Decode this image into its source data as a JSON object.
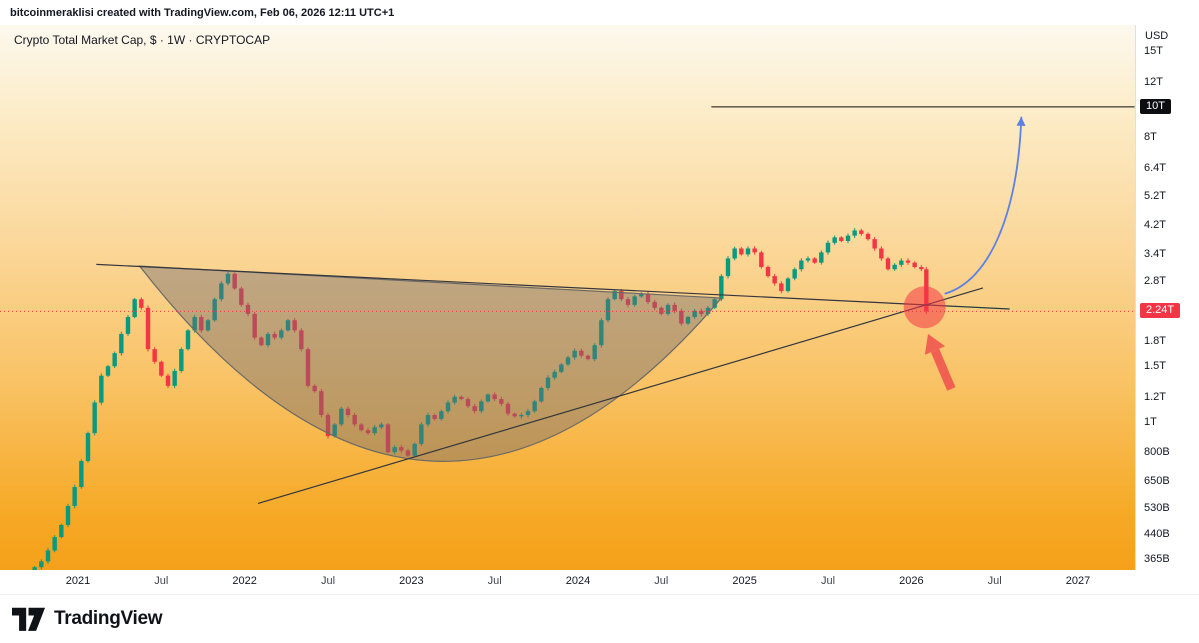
{
  "attribution": "bitcoinmeraklisi created with TradingView.com, Feb 06, 2026 12:11 UTC+1",
  "symbol_title": "Crypto Total Market Cap, $ · 1W · CRYPTOCAP",
  "currency_label": "USD",
  "brand": {
    "name": "TradingView"
  },
  "colors": {
    "up": "#089981",
    "down": "#f23645",
    "axis_text": "#131722",
    "trendline": "#33363e",
    "target_line": "#0c0d10",
    "cup_fill": "rgba(110,105,115,0.42)",
    "cup_stroke": "#6d6a66",
    "blue_arrow": "#5b80e6",
    "red_marker_fill": "rgba(242,54,69,0.55)",
    "red_arrow": "#ef5350",
    "current_price_line": "#f23645"
  },
  "price_axis": {
    "ticks": [
      {
        "label": "15T",
        "value": 15
      },
      {
        "label": "12T",
        "value": 12
      },
      {
        "label": "8T",
        "value": 8
      },
      {
        "label": "6.4T",
        "value": 6.4
      },
      {
        "label": "5.2T",
        "value": 5.2
      },
      {
        "label": "4.2T",
        "value": 4.2
      },
      {
        "label": "3.4T",
        "value": 3.4
      },
      {
        "label": "2.8T",
        "value": 2.8
      },
      {
        "label": "1.8T",
        "value": 1.8
      },
      {
        "label": "1.5T",
        "value": 1.5
      },
      {
        "label": "1.2T",
        "value": 1.2
      },
      {
        "label": "1T",
        "value": 1
      },
      {
        "label": "800B",
        "value": 0.8
      },
      {
        "label": "650B",
        "value": 0.65
      },
      {
        "label": "530B",
        "value": 0.53
      },
      {
        "label": "440B",
        "value": 0.44
      },
      {
        "label": "365B",
        "value": 0.365
      }
    ],
    "target_badge": {
      "label": "10T",
      "value": 10
    },
    "current_badge": {
      "label": "2.24T",
      "value": 2.24
    }
  },
  "time_axis": {
    "ticks": [
      {
        "label": "2021",
        "t": 2021,
        "major": true
      },
      {
        "label": "Jul",
        "t": 2021.5,
        "major": false
      },
      {
        "label": "2022",
        "t": 2022,
        "major": true
      },
      {
        "label": "Jul",
        "t": 2022.5,
        "major": false
      },
      {
        "label": "2023",
        "t": 2023,
        "major": true
      },
      {
        "label": "Jul",
        "t": 2023.5,
        "major": false
      },
      {
        "label": "2024",
        "t": 2024,
        "major": true
      },
      {
        "label": "Jul",
        "t": 2024.5,
        "major": false
      },
      {
        "label": "2025",
        "t": 2025,
        "major": true
      },
      {
        "label": "Jul",
        "t": 2025.5,
        "major": false
      },
      {
        "label": "2026",
        "t": 2026,
        "major": true
      },
      {
        "label": "Jul",
        "t": 2026.5,
        "major": false
      },
      {
        "label": "2027",
        "t": 2027,
        "major": true
      }
    ]
  },
  "chart_data": {
    "type": "candlestick",
    "title": "Crypto Total Market Cap, $ · 1W · CRYPTOCAP",
    "symbol": "CRYPTOCAP",
    "timeframe": "1W",
    "y_unit": "USD (trillions)",
    "y_scale": "log",
    "xlim": [
      2020.532,
      2027.342
    ],
    "ylim": [
      0.338,
      18.2
    ],
    "current_price": 2.24,
    "points": [
      [
        2020.74,
        0.345
      ],
      [
        2020.78,
        0.36
      ],
      [
        2020.82,
        0.39
      ],
      [
        2020.86,
        0.43
      ],
      [
        2020.9,
        0.47
      ],
      [
        2020.94,
        0.54
      ],
      [
        2020.98,
        0.62
      ],
      [
        2021.02,
        0.75
      ],
      [
        2021.06,
        0.92
      ],
      [
        2021.1,
        1.15
      ],
      [
        2021.14,
        1.4
      ],
      [
        2021.18,
        1.5
      ],
      [
        2021.22,
        1.65
      ],
      [
        2021.26,
        1.9
      ],
      [
        2021.3,
        2.15
      ],
      [
        2021.34,
        2.45
      ],
      [
        2021.38,
        2.3
      ],
      [
        2021.42,
        1.7
      ],
      [
        2021.46,
        1.55
      ],
      [
        2021.5,
        1.4
      ],
      [
        2021.54,
        1.3
      ],
      [
        2021.58,
        1.45
      ],
      [
        2021.62,
        1.7
      ],
      [
        2021.66,
        1.95
      ],
      [
        2021.7,
        2.15
      ],
      [
        2021.74,
        1.95
      ],
      [
        2021.78,
        2.1
      ],
      [
        2021.82,
        2.45
      ],
      [
        2021.86,
        2.75
      ],
      [
        2021.9,
        2.95
      ],
      [
        2021.94,
        2.65
      ],
      [
        2021.98,
        2.35
      ],
      [
        2022.02,
        2.2
      ],
      [
        2022.06,
        1.85
      ],
      [
        2022.1,
        1.75
      ],
      [
        2022.14,
        1.9
      ],
      [
        2022.18,
        1.85
      ],
      [
        2022.22,
        1.95
      ],
      [
        2022.26,
        2.1
      ],
      [
        2022.3,
        1.95
      ],
      [
        2022.34,
        1.7
      ],
      [
        2022.38,
        1.3
      ],
      [
        2022.42,
        1.25
      ],
      [
        2022.46,
        1.05
      ],
      [
        2022.5,
        0.9
      ],
      [
        2022.54,
        0.98
      ],
      [
        2022.58,
        1.1
      ],
      [
        2022.62,
        1.05
      ],
      [
        2022.66,
        0.98
      ],
      [
        2022.7,
        0.94
      ],
      [
        2022.74,
        0.92
      ],
      [
        2022.78,
        0.96
      ],
      [
        2022.82,
        0.98
      ],
      [
        2022.86,
        0.8
      ],
      [
        2022.9,
        0.83
      ],
      [
        2022.94,
        0.81
      ],
      [
        2022.98,
        0.78
      ],
      [
        2023.02,
        0.85
      ],
      [
        2023.06,
        0.98
      ],
      [
        2023.1,
        1.05
      ],
      [
        2023.14,
        1.02
      ],
      [
        2023.18,
        1.08
      ],
      [
        2023.22,
        1.15
      ],
      [
        2023.26,
        1.2
      ],
      [
        2023.3,
        1.18
      ],
      [
        2023.34,
        1.12
      ],
      [
        2023.38,
        1.08
      ],
      [
        2023.42,
        1.16
      ],
      [
        2023.46,
        1.22
      ],
      [
        2023.5,
        1.18
      ],
      [
        2023.54,
        1.14
      ],
      [
        2023.58,
        1.06
      ],
      [
        2023.62,
        1.04
      ],
      [
        2023.66,
        1.05
      ],
      [
        2023.7,
        1.08
      ],
      [
        2023.74,
        1.16
      ],
      [
        2023.78,
        1.28
      ],
      [
        2023.82,
        1.38
      ],
      [
        2023.86,
        1.44
      ],
      [
        2023.9,
        1.52
      ],
      [
        2023.94,
        1.6
      ],
      [
        2023.98,
        1.68
      ],
      [
        2024.02,
        1.62
      ],
      [
        2024.06,
        1.58
      ],
      [
        2024.1,
        1.75
      ],
      [
        2024.14,
        2.1
      ],
      [
        2024.18,
        2.45
      ],
      [
        2024.22,
        2.6
      ],
      [
        2024.26,
        2.45
      ],
      [
        2024.3,
        2.35
      ],
      [
        2024.34,
        2.5
      ],
      [
        2024.38,
        2.55
      ],
      [
        2024.42,
        2.4
      ],
      [
        2024.46,
        2.3
      ],
      [
        2024.5,
        2.2
      ],
      [
        2024.54,
        2.35
      ],
      [
        2024.58,
        2.25
      ],
      [
        2024.62,
        2.05
      ],
      [
        2024.66,
        2.15
      ],
      [
        2024.7,
        2.25
      ],
      [
        2024.74,
        2.2
      ],
      [
        2024.78,
        2.3
      ],
      [
        2024.82,
        2.45
      ],
      [
        2024.86,
        2.9
      ],
      [
        2024.9,
        3.3
      ],
      [
        2024.94,
        3.55
      ],
      [
        2024.98,
        3.4
      ],
      [
        2025.02,
        3.55
      ],
      [
        2025.06,
        3.45
      ],
      [
        2025.1,
        3.1
      ],
      [
        2025.14,
        2.9
      ],
      [
        2025.18,
        2.75
      ],
      [
        2025.22,
        2.6
      ],
      [
        2025.26,
        2.85
      ],
      [
        2025.3,
        3.05
      ],
      [
        2025.34,
        3.25
      ],
      [
        2025.38,
        3.3
      ],
      [
        2025.42,
        3.2
      ],
      [
        2025.46,
        3.45
      ],
      [
        2025.5,
        3.7
      ],
      [
        2025.54,
        3.85
      ],
      [
        2025.58,
        3.75
      ],
      [
        2025.62,
        3.9
      ],
      [
        2025.66,
        4.05
      ],
      [
        2025.7,
        3.95
      ],
      [
        2025.74,
        3.8
      ],
      [
        2025.78,
        3.55
      ],
      [
        2025.82,
        3.3
      ],
      [
        2025.86,
        3.05
      ],
      [
        2025.9,
        3.15
      ],
      [
        2025.94,
        3.25
      ],
      [
        2025.98,
        3.2
      ],
      [
        2026.02,
        3.1
      ],
      [
        2026.06,
        3.05
      ],
      [
        2026.09,
        2.24
      ]
    ],
    "annotations": {
      "cup": {
        "type": "rounded-bottom",
        "t1": 2021.37,
        "v1": 3.12,
        "t2": 2024.86,
        "v2": 2.47,
        "bottom_v": 0.75
      },
      "resistance_trendline": {
        "t1": 2021.11,
        "v1": 3.16,
        "t2": 2026.59,
        "v2": 2.28
      },
      "ascending_trendline": {
        "t1": 2022.08,
        "v1": 0.55,
        "t2": 2026.43,
        "v2": 2.66
      },
      "target_level": {
        "value": 10,
        "t1": 2024.8,
        "t2": 2027.34,
        "label": "10T"
      },
      "current_price_line": {
        "value": 2.24,
        "label": "2.24T"
      },
      "highlight_circle": {
        "t": 2026.08,
        "v": 2.31,
        "radius_px": 21
      },
      "red_arrow": {
        "tail": [
          2026.24,
          1.27
        ],
        "head": [
          2026.1,
          1.9
        ]
      },
      "blue_curve_arrow": {
        "p0": [
          2026.2,
          2.55
        ],
        "c1": [
          2026.47,
          2.8
        ],
        "c2": [
          2026.64,
          4.6
        ],
        "p1": [
          2026.66,
          9.3
        ]
      }
    }
  }
}
